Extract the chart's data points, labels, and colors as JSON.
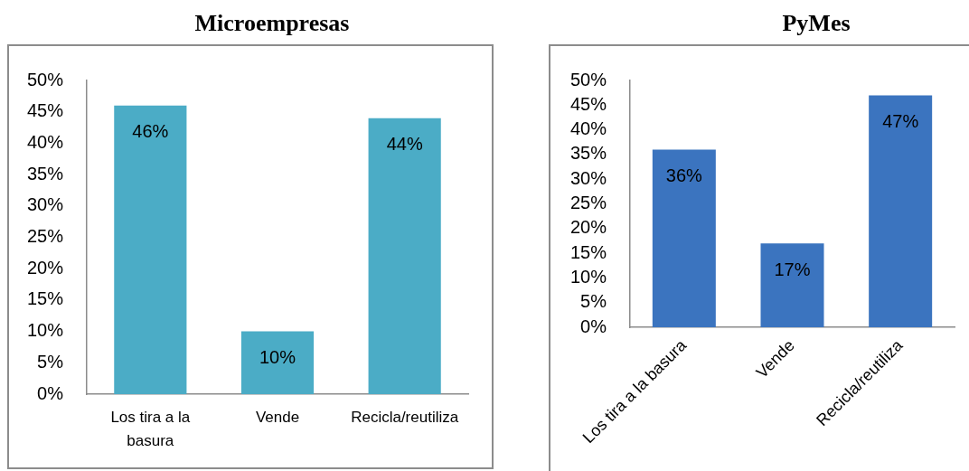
{
  "chart_data": [
    {
      "type": "bar",
      "title": "Microempresas",
      "categories": [
        "Los tira a la basura",
        "Vende",
        "Recicla/reutiliza"
      ],
      "values": [
        46,
        10,
        44
      ],
      "color": "#4bacc6",
      "value_labels": [
        "46%",
        "10%",
        "44%"
      ],
      "ylim": [
        0,
        50
      ],
      "yticks": [
        {
          "value": 0,
          "label": "0%"
        },
        {
          "value": 5,
          "label": "5%"
        },
        {
          "value": 10,
          "label": "10%"
        },
        {
          "value": 15,
          "label": "15%"
        },
        {
          "value": 20,
          "label": "20%"
        },
        {
          "value": 25,
          "label": "25%"
        },
        {
          "value": 30,
          "label": "30%"
        },
        {
          "value": 35,
          "label": "35%"
        },
        {
          "value": 40,
          "label": "40%"
        },
        {
          "value": 45,
          "label": "45%"
        },
        {
          "value": 50,
          "label": "50%"
        }
      ]
    },
    {
      "type": "bar",
      "title": "PyMes",
      "categories": [
        "Los tira a la basura",
        "Vende",
        "Recicla/reutiliza"
      ],
      "values": [
        36,
        17,
        47
      ],
      "color": "#3b74bf",
      "value_labels": [
        "36%",
        "17%",
        "47%"
      ],
      "ylim": [
        0,
        50
      ],
      "yticks": [
        {
          "value": 0,
          "label": "0%"
        },
        {
          "value": 5,
          "label": "5%"
        },
        {
          "value": 10,
          "label": "10%"
        },
        {
          "value": 15,
          "label": "15%"
        },
        {
          "value": 20,
          "label": "20%"
        },
        {
          "value": 25,
          "label": "25%"
        },
        {
          "value": 30,
          "label": "30%"
        },
        {
          "value": 35,
          "label": "35%"
        },
        {
          "value": 40,
          "label": "40%"
        },
        {
          "value": 45,
          "label": "45%"
        },
        {
          "value": 50,
          "label": "50%"
        }
      ]
    }
  ]
}
